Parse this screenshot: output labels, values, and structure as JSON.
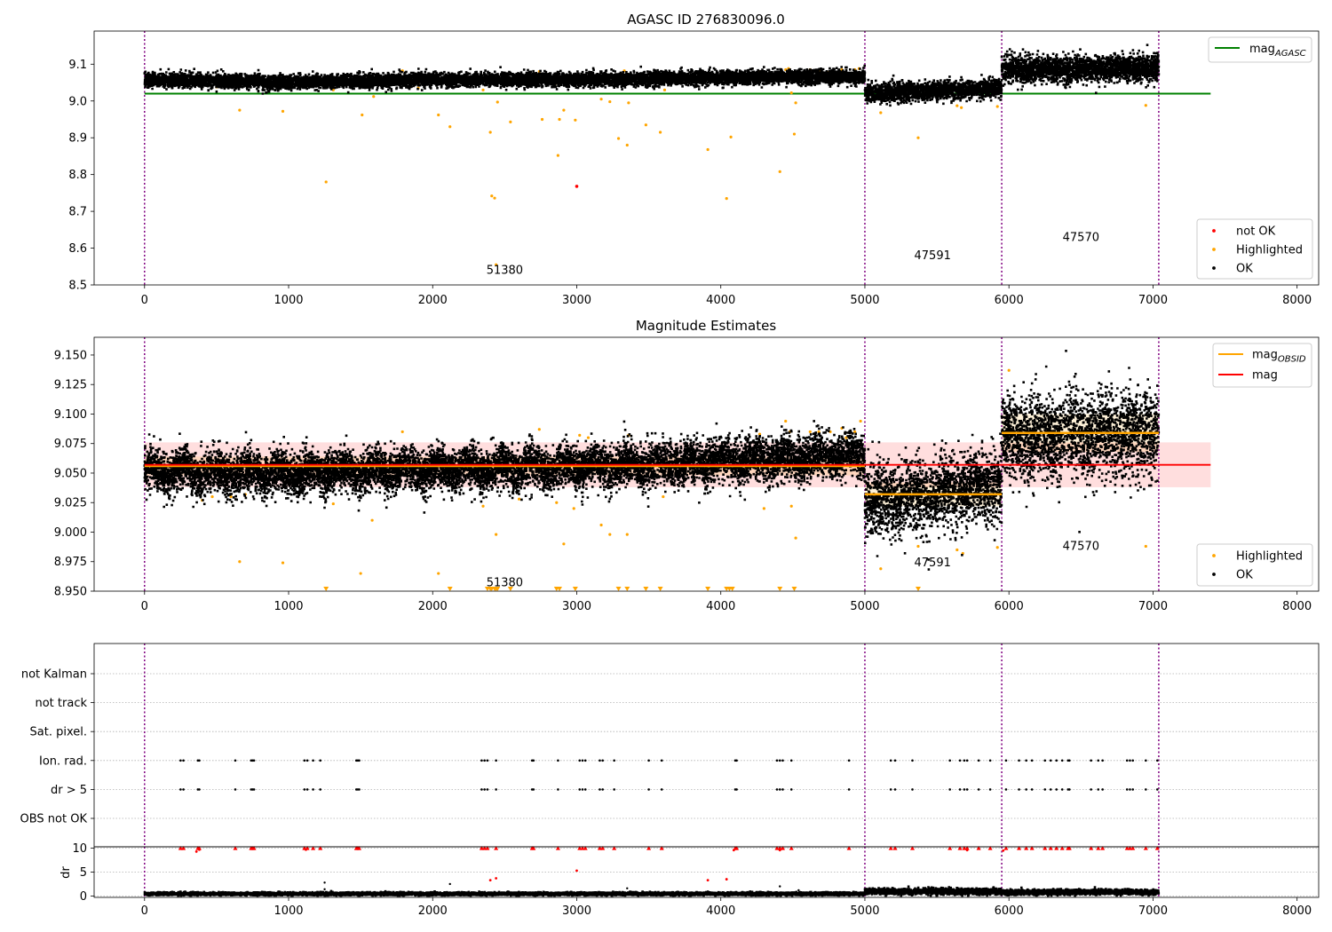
{
  "figure": {
    "ax1_title": "AGASC ID 276830096.0",
    "ax2_title": "Magnitude Estimates"
  },
  "chart_data": [
    {
      "type": "scatter",
      "title": "AGASC ID 276830096.0",
      "xlabel": "",
      "ylabel": "",
      "xlim": [
        -350,
        8150
      ],
      "ylim": [
        8.5,
        9.19
      ],
      "xticks": [
        "0",
        "1000",
        "2000",
        "3000",
        "4000",
        "5000",
        "6000",
        "7000",
        "8000"
      ],
      "yticks": [
        "8.5",
        "8.6",
        "8.7",
        "8.8",
        "8.9",
        "9.0",
        "9.1"
      ],
      "grid": false,
      "legend_upper": {
        "placement": "upper right",
        "entries": [
          {
            "label_base": "mag",
            "label_sub": "AGASC",
            "color": "#008000"
          }
        ]
      },
      "legend_lower": {
        "placement": "lower right",
        "entries": [
          {
            "label": "not OK",
            "color": "#ff0000"
          },
          {
            "label": "Highlighted",
            "color": "#ffa500"
          },
          {
            "label": "OK",
            "color": "#000000"
          }
        ]
      },
      "mag_agasc": 9.02,
      "mag_agasc_x_range": [
        0,
        7400
      ],
      "obsid_boundaries": [
        0,
        5000,
        5950,
        7040
      ],
      "annotations": [
        {
          "text": "51380",
          "x": 2500,
          "y": 8.53
        },
        {
          "text": "47591",
          "x": 5470,
          "y": 8.57
        },
        {
          "text": "47570",
          "x": 6500,
          "y": 8.62
        }
      ],
      "ok_segments": [
        {
          "x": [
            0,
            5000
          ],
          "mean": 9.055,
          "std": 0.009,
          "drift": [
            [
              0,
              9.057
            ],
            [
              1000,
              9.051
            ],
            [
              2000,
              9.058
            ],
            [
              3000,
              9.058
            ],
            [
              4000,
              9.063
            ],
            [
              5000,
              9.067
            ]
          ]
        },
        {
          "x": [
            5000,
            5950
          ],
          "mean": 9.025,
          "std": 0.012,
          "drift": [
            [
              5000,
              9.02
            ],
            [
              5950,
              9.035
            ]
          ]
        },
        {
          "x": [
            5950,
            7040
          ],
          "mean": 9.09,
          "std": 0.018,
          "drift": [
            [
              5950,
              9.085
            ],
            [
              7040,
              9.09
            ]
          ]
        }
      ],
      "highlighted_points": [
        [
          70,
          9.052
        ],
        [
          230,
          9.05
        ],
        [
          400,
          9.038
        ],
        [
          500,
          9.038
        ],
        [
          610,
          9.042
        ],
        [
          660,
          8.975
        ],
        [
          700,
          9.05
        ],
        [
          960,
          8.972
        ],
        [
          1080,
          9.055
        ],
        [
          1260,
          8.78
        ],
        [
          1310,
          9.03
        ],
        [
          1510,
          8.962
        ],
        [
          1590,
          9.012
        ],
        [
          1640,
          9.045
        ],
        [
          1790,
          9.082
        ],
        [
          1900,
          9.035
        ],
        [
          2040,
          8.962
        ],
        [
          2120,
          8.93
        ],
        [
          2350,
          9.03
        ],
        [
          2400,
          8.915
        ],
        [
          2410,
          8.742
        ],
        [
          2430,
          8.736
        ],
        [
          2440,
          8.555
        ],
        [
          2450,
          8.997
        ],
        [
          2540,
          8.943
        ],
        [
          2590,
          9.065
        ],
        [
          2740,
          9.08
        ],
        [
          2750,
          9.065
        ],
        [
          2760,
          8.95
        ],
        [
          2850,
          9.045
        ],
        [
          2870,
          8.852
        ],
        [
          2880,
          8.95
        ],
        [
          2910,
          8.975
        ],
        [
          2990,
          8.948
        ],
        [
          3020,
          9.065
        ],
        [
          3080,
          9.06
        ],
        [
          3170,
          9.005
        ],
        [
          3230,
          8.998
        ],
        [
          3290,
          8.898
        ],
        [
          3330,
          9.082
        ],
        [
          3350,
          8.88
        ],
        [
          3360,
          8.995
        ],
        [
          3480,
          8.935
        ],
        [
          3580,
          8.915
        ],
        [
          3610,
          9.03
        ],
        [
          3910,
          8.868
        ],
        [
          4040,
          8.735
        ],
        [
          4070,
          8.902
        ],
        [
          4270,
          9.08
        ],
        [
          4410,
          8.808
        ],
        [
          4450,
          9.085
        ],
        [
          4470,
          9.088
        ],
        [
          4490,
          9.022
        ],
        [
          4510,
          8.91
        ],
        [
          4520,
          8.995
        ],
        [
          4540,
          9.068
        ],
        [
          4620,
          9.085
        ],
        [
          4680,
          9.082
        ],
        [
          4740,
          9.078
        ],
        [
          4840,
          9.085
        ],
        [
          4870,
          9.07
        ],
        [
          4930,
          9.085
        ],
        [
          4960,
          9.088
        ],
        [
          5110,
          8.968
        ],
        [
          5370,
          8.9
        ],
        [
          5640,
          8.987
        ],
        [
          5670,
          8.982
        ],
        [
          5920,
          8.985
        ],
        [
          6950,
          8.988
        ]
      ],
      "not_ok_points": [
        [
          3000,
          8.768
        ]
      ]
    },
    {
      "type": "scatter",
      "title": "Magnitude Estimates",
      "xlabel": "",
      "ylabel": "",
      "xlim": [
        -350,
        8150
      ],
      "ylim": [
        8.95,
        9.165
      ],
      "xticks": [
        "0",
        "1000",
        "2000",
        "3000",
        "4000",
        "5000",
        "6000",
        "7000",
        "8000"
      ],
      "yticks": [
        "8.950",
        "8.975",
        "9.000",
        "9.025",
        "9.050",
        "9.075",
        "9.100",
        "9.125",
        "9.150"
      ],
      "grid": false,
      "legend_upper": {
        "placement": "upper right",
        "entries": [
          {
            "label_base": "mag",
            "label_sub": "OBSID",
            "color": "#ffa500"
          },
          {
            "label": "mag",
            "color": "#ff0000"
          }
        ]
      },
      "legend_lower": {
        "placement": "lower right",
        "entries": [
          {
            "label": "Highlighted",
            "color": "#ffa500"
          },
          {
            "label": "OK",
            "color": "#000000"
          }
        ]
      },
      "mag_overall": 9.057,
      "mag_overall_band": [
        9.038,
        9.076
      ],
      "mag_overall_x_range": [
        0,
        7400
      ],
      "obsid_mags": [
        {
          "x": [
            0,
            5000
          ],
          "mag": 9.056,
          "band": [
            9.048,
            9.064
          ]
        },
        {
          "x": [
            5000,
            5950
          ],
          "mag": 9.032,
          "band": [
            9.022,
            9.042
          ]
        },
        {
          "x": [
            5950,
            7040
          ],
          "mag": 9.084,
          "band": [
            9.068,
            9.1
          ]
        }
      ],
      "obsid_boundaries": [
        0,
        5000,
        5950,
        7040
      ],
      "annotations": [
        {
          "text": "51380",
          "x": 2500,
          "y": 8.954
        },
        {
          "text": "47591",
          "x": 5470,
          "y": 8.971
        },
        {
          "text": "47570",
          "x": 6500,
          "y": 8.985
        }
      ],
      "ok_segments": [
        {
          "x": [
            0,
            5000
          ],
          "mean": 9.055,
          "std": 0.009,
          "drift": [
            [
              0,
              9.052
            ],
            [
              1000,
              9.05
            ],
            [
              2000,
              9.053
            ],
            [
              3000,
              9.055
            ],
            [
              4000,
              9.06
            ],
            [
              5000,
              9.065
            ]
          ]
        },
        {
          "x": [
            5000,
            5950
          ],
          "mean": 9.03,
          "std": 0.015,
          "drift": [
            [
              5000,
              9.025
            ],
            [
              5950,
              9.04
            ]
          ]
        },
        {
          "x": [
            5950,
            7040
          ],
          "mean": 9.085,
          "std": 0.018,
          "drift": [
            [
              5950,
              9.08
            ],
            [
              7040,
              9.085
            ]
          ]
        }
      ],
      "highlighted_points": [
        [
          400,
          9.027
        ],
        [
          470,
          9.03
        ],
        [
          600,
          9.03
        ],
        [
          660,
          8.975
        ],
        [
          700,
          9.032
        ],
        [
          960,
          8.974
        ],
        [
          1310,
          9.024
        ],
        [
          1500,
          8.965
        ],
        [
          1580,
          9.01
        ],
        [
          1790,
          9.085
        ],
        [
          2040,
          8.965
        ],
        [
          2350,
          9.022
        ],
        [
          2440,
          8.998
        ],
        [
          2600,
          9.028
        ],
        [
          2740,
          9.087
        ],
        [
          2860,
          9.025
        ],
        [
          2910,
          8.99
        ],
        [
          2980,
          9.02
        ],
        [
          3020,
          9.082
        ],
        [
          3080,
          9.08
        ],
        [
          3170,
          9.006
        ],
        [
          3230,
          8.998
        ],
        [
          3350,
          8.998
        ],
        [
          3360,
          9.082
        ],
        [
          3600,
          9.03
        ],
        [
          4270,
          9.083
        ],
        [
          4300,
          9.02
        ],
        [
          4450,
          9.094
        ],
        [
          4480,
          9.085
        ],
        [
          4490,
          9.022
        ],
        [
          4520,
          8.995
        ],
        [
          4620,
          9.085
        ],
        [
          4680,
          9.085
        ],
        [
          4760,
          9.085
        ],
        [
          4840,
          9.088
        ],
        [
          4870,
          9.08
        ],
        [
          4930,
          9.085
        ],
        [
          4970,
          9.094
        ],
        [
          5110,
          8.969
        ],
        [
          5370,
          8.988
        ],
        [
          5640,
          8.985
        ],
        [
          5680,
          8.982
        ],
        [
          5920,
          8.987
        ],
        [
          6000,
          9.137
        ],
        [
          6950,
          8.988
        ]
      ],
      "below_axis_markers": [
        1260,
        2120,
        2380,
        2400,
        2410,
        2430,
        2440,
        2450,
        2540,
        2860,
        2880,
        2990,
        3290,
        3350,
        3480,
        3580,
        3910,
        4040,
        4060,
        4080,
        4410,
        4510,
        5370
      ]
    },
    {
      "type": "scatter",
      "title": "",
      "xlabel": "",
      "ylabel": "",
      "categories": [
        "not Kalman",
        "not track",
        "Sat. pixel.",
        "Ion. rad.",
        "dr > 5",
        "OBS not OK"
      ],
      "xlim": [
        -350,
        8150
      ],
      "grid": true,
      "obsid_boundaries": [
        0,
        5000,
        5950,
        7040
      ],
      "flagged_times": {
        "Ion. rad.": [
          250,
          270,
          370,
          380,
          630,
          740,
          750,
          760,
          1110,
          1130,
          1170,
          1220,
          1470,
          1480,
          1490,
          2340,
          2360,
          2380,
          2440,
          2690,
          2700,
          2870,
          3020,
          3040,
          3060,
          3160,
          3180,
          3260,
          3500,
          3590,
          4100,
          4110,
          4390,
          4410,
          4430,
          4490,
          4890,
          5180,
          5210,
          5330,
          5590,
          5660,
          5690,
          5710,
          5790,
          5870,
          5980,
          6070,
          6120,
          6160,
          6250,
          6290,
          6330,
          6370,
          6410,
          6420,
          6570,
          6620,
          6650,
          6820,
          6840,
          6860,
          6950,
          7030
        ],
        "dr > 5": [
          250,
          270,
          370,
          380,
          630,
          740,
          750,
          760,
          1110,
          1130,
          1170,
          1220,
          1470,
          1480,
          1490,
          2340,
          2360,
          2380,
          2440,
          2690,
          2700,
          2870,
          3020,
          3040,
          3060,
          3160,
          3180,
          3260,
          3500,
          3590,
          4100,
          4110,
          4390,
          4410,
          4430,
          4490,
          4890,
          5180,
          5210,
          5330,
          5590,
          5660,
          5690,
          5710,
          5790,
          5870,
          5980,
          6070,
          6120,
          6160,
          6250,
          6290,
          6330,
          6370,
          6410,
          6420,
          6570,
          6620,
          6650,
          6820,
          6840,
          6860,
          6950,
          7030
        ]
      }
    },
    {
      "type": "scatter",
      "title": "",
      "xlabel": "",
      "ylabel": "dr",
      "xlim": [
        -350,
        8150
      ],
      "ylim": [
        -0.3,
        10.3
      ],
      "xticks": [
        "0",
        "1000",
        "2000",
        "3000",
        "4000",
        "5000",
        "6000",
        "7000",
        "8000"
      ],
      "yticks": [
        "0",
        "5",
        "10"
      ],
      "grid": true,
      "obsid_boundaries": [
        0,
        5000,
        5950,
        7040
      ],
      "ok_segments": [
        {
          "x": [
            0,
            5000
          ],
          "mean": 0.45,
          "std": 0.15
        },
        {
          "x": [
            5000,
            5950
          ],
          "mean": 0.95,
          "std": 0.3
        },
        {
          "x": [
            5950,
            7040
          ],
          "mean": 0.8,
          "std": 0.25
        }
      ],
      "clipped_at_10": [
        250,
        270,
        370,
        380,
        630,
        740,
        750,
        760,
        1110,
        1130,
        1170,
        1220,
        1470,
        1480,
        1490,
        2340,
        2360,
        2380,
        2440,
        2690,
        2700,
        2870,
        3020,
        3040,
        3060,
        3160,
        3180,
        3260,
        3500,
        3590,
        4100,
        4110,
        4390,
        4410,
        4430,
        4490,
        4890,
        5180,
        5210,
        5330,
        5590,
        5660,
        5690,
        5710,
        5790,
        5870,
        5980,
        6070,
        6120,
        6160,
        6250,
        6290,
        6330,
        6370,
        6410,
        6420,
        6570,
        6620,
        6650,
        6820,
        6840,
        6860,
        6950,
        7030
      ],
      "red_points": [
        [
          360,
          9.3
        ],
        [
          380,
          9.7
        ],
        [
          1120,
          9.7
        ],
        [
          2400,
          3.3
        ],
        [
          2440,
          3.7
        ],
        [
          3000,
          5.3
        ],
        [
          3910,
          3.3
        ],
        [
          4040,
          3.5
        ],
        [
          4090,
          9.6
        ],
        [
          4410,
          9.6
        ],
        [
          5710,
          9.6
        ],
        [
          5960,
          9.5
        ]
      ],
      "black_points": [
        [
          1250,
          1.4
        ],
        [
          1250,
          2.8
        ],
        [
          2120,
          2.5
        ],
        [
          3350,
          1.6
        ],
        [
          4410,
          2.0
        ],
        [
          4540,
          1.2
        ]
      ]
    }
  ]
}
